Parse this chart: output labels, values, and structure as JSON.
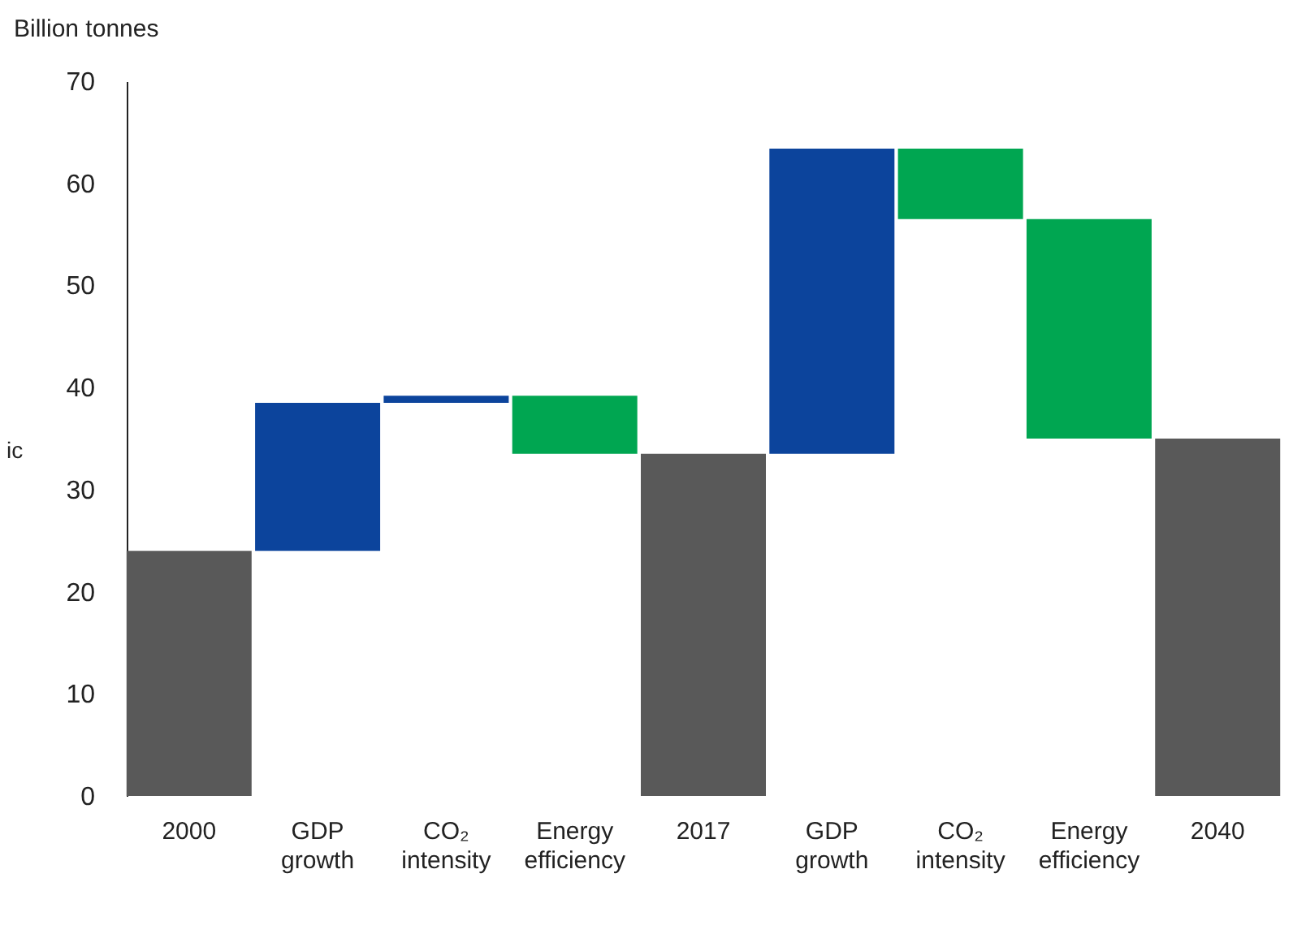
{
  "chart_data": {
    "type": "bar",
    "ylabel": "Billion tonnes",
    "categories": [
      "2000",
      "GDP growth",
      "CO₂ intensity",
      "Energy efficiency",
      "2017",
      "GDP growth",
      "CO₂ intensity",
      "Energy efficiency",
      "2040"
    ],
    "values": [
      24.0,
      14.5,
      0.7,
      -5.7,
      33.5,
      29.9,
      -6.9,
      -21.5,
      35.0
    ],
    "base": [
      0,
      24.0,
      38.5,
      39.2,
      0,
      33.5,
      63.4,
      56.5,
      0
    ],
    "colors": [
      "#595959",
      "#0c449c",
      "#0c449c",
      "#00a651",
      "#595959",
      "#0c449c",
      "#00a651",
      "#00a651",
      "#595959"
    ],
    "ylim": [
      0,
      70
    ],
    "yticks": [
      0,
      10,
      20,
      30,
      40,
      50,
      60,
      70
    ],
    "grid": false,
    "annotations": [
      "ic"
    ]
  }
}
